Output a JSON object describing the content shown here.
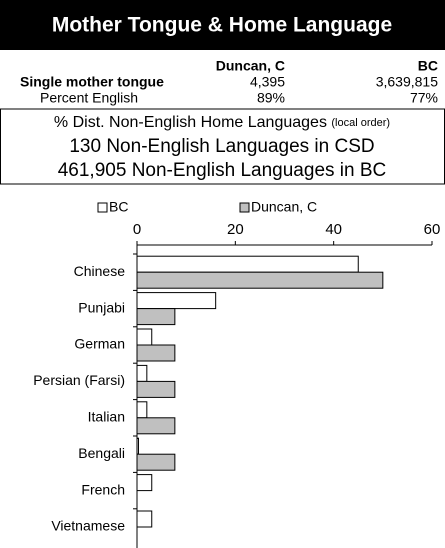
{
  "header": {
    "title": "Mother Tongue & Home Language"
  },
  "table": {
    "columns": [
      "Duncan, C",
      "BC"
    ],
    "rows": [
      [
        "Single mother tongue",
        "4,395",
        "3,639,815"
      ],
      [
        "Percent English",
        "89%",
        "77%"
      ]
    ]
  },
  "summary": {
    "title": "% Dist. Non-English Home Languages",
    "note": "(local order)",
    "lines": [
      "130 Non-English Languages in CSD",
      "461,905 Non-English Languages in BC"
    ]
  },
  "chart_data": {
    "type": "bar",
    "orientation": "horizontal",
    "categories": [
      "Chinese",
      "Punjabi",
      "German",
      "Persian (Farsi)",
      "Italian",
      "Bengali",
      "French",
      "Vietnamese"
    ],
    "series": [
      {
        "name": "BC",
        "color": "#ffffff",
        "values": [
          45,
          16,
          3,
          2,
          2,
          0.3,
          3,
          3
        ]
      },
      {
        "name": "Duncan, C",
        "color": "#c0c0c0",
        "values": [
          50,
          7.7,
          7.7,
          7.7,
          7.7,
          7.7,
          0,
          0
        ]
      }
    ],
    "xlim": [
      0,
      60
    ],
    "xticks": [
      0,
      20,
      40,
      60
    ]
  }
}
